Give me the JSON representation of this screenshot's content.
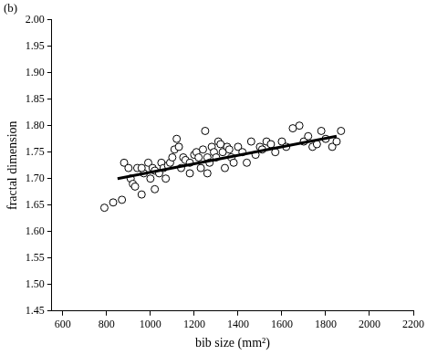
{
  "chart_data": {
    "type": "scatter",
    "title": "(b)",
    "x_label": "bib size (mm²)",
    "y_label": "fractal dimension",
    "xlim": [
      550,
      2200
    ],
    "xticks": [
      600,
      800,
      1000,
      1200,
      1400,
      1600,
      1800,
      2000,
      2200
    ],
    "ylim": [
      1.45,
      2.0
    ],
    "yticks": [
      {
        "value": 1.45,
        "label": "1.45"
      },
      {
        "value": 1.5,
        "label": "1.50"
      },
      {
        "value": 1.55,
        "label": "1.55"
      },
      {
        "value": 1.6,
        "label": "1.60"
      },
      {
        "value": 1.65,
        "label": "1.65"
      },
      {
        "value": 1.7,
        "label": "1.70"
      },
      {
        "value": 1.75,
        "label": "1.75"
      },
      {
        "value": 1.8,
        "label": "1.80"
      },
      {
        "value": 1.85,
        "label": "1.85"
      },
      {
        "value": 1.9,
        "label": "1.90"
      },
      {
        "value": 1.95,
        "label": "1.95"
      },
      {
        "value": 2.0,
        "label": "2.00"
      }
    ],
    "grid": false,
    "series": [
      {
        "type": "scatter",
        "marker": "open_circle",
        "color": "#000000",
        "x": [
          790,
          830,
          870,
          880,
          900,
          910,
          920,
          930,
          940,
          960,
          970,
          990,
          1000,
          1010,
          1020,
          1040,
          1050,
          1060,
          1070,
          1080,
          1090,
          1100,
          1110,
          1120,
          1130,
          1140,
          1150,
          1160,
          1180,
          1200,
          1210,
          1220,
          1230,
          1240,
          1250,
          1260,
          1270,
          1280,
          1290,
          1300,
          1310,
          1320,
          1330,
          1340,
          1350,
          1360,
          1370,
          1380,
          1400,
          1420,
          1440,
          1460,
          1480,
          1500,
          1510,
          1530,
          1550,
          1570,
          1600,
          1620,
          1650,
          1680,
          1700,
          1720,
          1740,
          1760,
          1780,
          1800,
          1830,
          1850,
          1870,
          1260,
          1180,
          1020,
          960
        ],
        "values": [
          1.645,
          1.655,
          1.66,
          1.73,
          1.72,
          1.7,
          1.69,
          1.685,
          1.72,
          1.67,
          1.71,
          1.73,
          1.7,
          1.72,
          1.715,
          1.71,
          1.73,
          1.72,
          1.7,
          1.725,
          1.73,
          1.74,
          1.755,
          1.775,
          1.76,
          1.72,
          1.74,
          1.735,
          1.73,
          1.745,
          1.75,
          1.74,
          1.72,
          1.755,
          1.79,
          1.74,
          1.73,
          1.76,
          1.75,
          1.74,
          1.77,
          1.765,
          1.75,
          1.72,
          1.76,
          1.755,
          1.74,
          1.73,
          1.76,
          1.75,
          1.73,
          1.77,
          1.745,
          1.76,
          1.755,
          1.77,
          1.765,
          1.75,
          1.77,
          1.76,
          1.795,
          1.8,
          1.77,
          1.78,
          1.76,
          1.765,
          1.79,
          1.775,
          1.76,
          1.77,
          1.79,
          1.71,
          1.71,
          1.68,
          1.72
        ]
      },
      {
        "type": "line",
        "line_style": "solid",
        "color": "#000000",
        "x": [
          850,
          1850
        ],
        "values": [
          1.7,
          1.78
        ]
      }
    ]
  }
}
